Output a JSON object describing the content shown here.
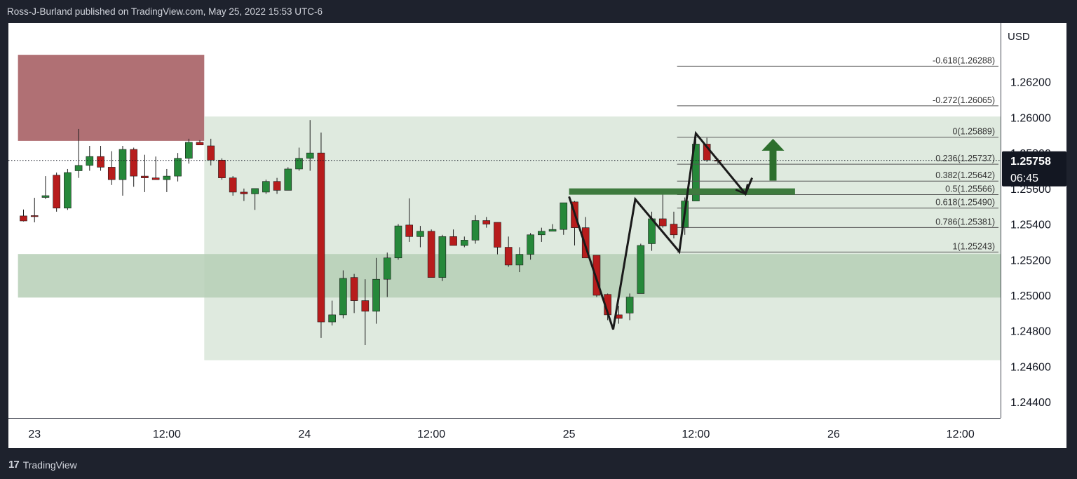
{
  "header": {
    "published_text": "Ross-J-Burland published on TradingView.com, May 25, 2022 15:53 UTC-6"
  },
  "footer": {
    "logo_glyph": "17",
    "brand": "TradingView",
    "logo_icon": "tradingview-logo-icon"
  },
  "colors": {
    "background": "#1e222d",
    "bull": "#26883a",
    "bear": "#b71c1c",
    "supply_zone": "#b07074",
    "demand_zone": "#b6cfb6",
    "range_zone": "#dfeadf",
    "price_tag": "#131722",
    "neckline": "#3e7b3e",
    "arrow": "#2d6f2d"
  },
  "chart_data": {
    "type": "candlestick",
    "currency_label": "USD",
    "y_ticks": [
      "1.26200",
      "1.26000",
      "1.25800",
      "1.25600",
      "1.25400",
      "1.25200",
      "1.25000",
      "1.24800",
      "1.24600",
      "1.24400"
    ],
    "y_range": [
      1.2431,
      1.2653
    ],
    "x_ticks": [
      {
        "label": "23",
        "bar": 1
      },
      {
        "label": "12:00",
        "bar": 13
      },
      {
        "label": "24",
        "bar": 25.5
      },
      {
        "label": "12:00",
        "bar": 37
      },
      {
        "label": "25",
        "bar": 49.5
      },
      {
        "label": "12:00",
        "bar": 61
      },
      {
        "label": "26",
        "bar": 73.5
      },
      {
        "label": "12:00",
        "bar": 85
      }
    ],
    "current_price": {
      "value": "1.25758",
      "countdown": "06:45",
      "level": 1.25758
    },
    "fibonacci": [
      {
        "label": "-0.618(1.26288)",
        "level": 1.26288
      },
      {
        "label": "-0.272(1.26065)",
        "level": 1.26065
      },
      {
        "label": "0(1.25889)",
        "level": 1.25889
      },
      {
        "label": "0.236(1.25737)",
        "level": 1.25737
      },
      {
        "label": "0.382(1.25642)",
        "level": 1.25642
      },
      {
        "label": "0.5(1.25566)",
        "level": 1.25566
      },
      {
        "label": "0.618(1.25490)",
        "level": 1.2549
      },
      {
        "label": "0.786(1.25381)",
        "level": 1.25381
      },
      {
        "label": "1(1.25243)",
        "level": 1.25243
      }
    ],
    "fib_start_bar": 59.3,
    "zones": [
      {
        "name": "supply",
        "bar_start": -0.5,
        "bar_end": 16.4,
        "y_top": 1.26352,
        "y_bottom": 1.25868
      },
      {
        "name": "range",
        "bar_start": 16.4,
        "bar_end": 91,
        "y_top": 1.26005,
        "y_bottom": 1.24635
      },
      {
        "name": "demand",
        "bar_start": -0.5,
        "bar_end": 91,
        "y_top": 1.25232,
        "y_bottom": 1.24987
      }
    ],
    "neckline": {
      "bar_start": 49.5,
      "bar_end": 70,
      "level": 1.25583
    },
    "pattern_line": [
      [
        49.5,
        1.25555
      ],
      [
        53.5,
        1.24808
      ],
      [
        55.5,
        1.2554
      ],
      [
        59.5,
        1.25245
      ],
      [
        61,
        1.2591
      ],
      [
        65.5,
        1.2557
      ],
      [
        66.1,
        1.2566
      ]
    ],
    "up_arrow": {
      "bar": 68,
      "from": 1.25645,
      "to": 1.2588
    },
    "candles": [
      [
        1.25446,
        1.25482,
        1.25418,
        1.25415
      ],
      [
        1.25448,
        1.25548,
        1.25444,
        1.2541
      ],
      [
        1.2555,
        1.2567,
        1.2556,
        1.25541
      ],
      [
        1.25675,
        1.2569,
        1.2549,
        1.2547
      ],
      [
        1.2549,
        1.2571,
        1.2569,
        1.2548
      ],
      [
        1.257,
        1.25935,
        1.2573,
        1.2566
      ],
      [
        1.2573,
        1.2584,
        1.2578,
        1.257
      ],
      [
        1.2578,
        1.2584,
        1.2572,
        1.257
      ],
      [
        1.2572,
        1.2581,
        1.2565,
        1.2562
      ],
      [
        1.2565,
        1.2584,
        1.2582,
        1.2556
      ],
      [
        1.2582,
        1.2583,
        1.2567,
        1.2561
      ],
      [
        1.2567,
        1.2579,
        1.2566,
        1.2558
      ],
      [
        1.2566,
        1.2578,
        1.2565,
        1.2565
      ],
      [
        1.2565,
        1.2571,
        1.2567,
        1.2558
      ],
      [
        1.2567,
        1.258,
        1.2577,
        1.2564
      ],
      [
        1.2577,
        1.2588,
        1.2586,
        1.2574
      ],
      [
        1.2586,
        1.25872,
        1.25845,
        1.25845
      ],
      [
        1.2584,
        1.2588,
        1.2576,
        1.2573
      ],
      [
        1.2576,
        1.2577,
        1.2566,
        1.2565
      ],
      [
        1.2566,
        1.2567,
        1.2558,
        1.2556
      ],
      [
        1.2558,
        1.256,
        1.2557,
        1.2553
      ],
      [
        1.2557,
        1.256,
        1.256,
        1.2548
      ],
      [
        1.2558,
        1.2565,
        1.2564,
        1.2557
      ],
      [
        1.2564,
        1.2566,
        1.2559,
        1.2557
      ],
      [
        1.2559,
        1.2572,
        1.2571,
        1.2559
      ],
      [
        1.2571,
        1.2583,
        1.2577,
        1.257
      ],
      [
        1.2577,
        1.25985,
        1.258,
        1.257
      ],
      [
        1.258,
        1.25915,
        1.2485,
        1.2476
      ],
      [
        1.2485,
        1.2497,
        1.2489,
        1.2483
      ],
      [
        1.2489,
        1.2514,
        1.25095,
        1.2487
      ],
      [
        1.251,
        1.2512,
        1.2497,
        1.249
      ],
      [
        1.2497,
        1.2509,
        1.2491,
        1.2472
      ],
      [
        1.2491,
        1.2521,
        1.2509,
        1.2484
      ],
      [
        1.2509,
        1.2524,
        1.2521,
        1.2499
      ],
      [
        1.2521,
        1.254,
        1.2539,
        1.252
      ],
      [
        1.25395,
        1.25545,
        1.2533,
        1.253
      ],
      [
        1.2533,
        1.2539,
        1.2536,
        1.2527
      ],
      [
        1.2536,
        1.2537,
        1.251,
        1.251
      ],
      [
        1.251,
        1.2534,
        1.2533,
        1.2508
      ],
      [
        1.2533,
        1.2537,
        1.2528,
        1.2528
      ],
      [
        1.2528,
        1.2533,
        1.2531,
        1.2527
      ],
      [
        1.2531,
        1.2545,
        1.2542,
        1.2529
      ],
      [
        1.2542,
        1.2544,
        1.254,
        1.2538
      ],
      [
        1.2541,
        1.2541,
        1.2527,
        1.2523
      ],
      [
        1.2527,
        1.2533,
        1.2517,
        1.2516
      ],
      [
        1.2517,
        1.2527,
        1.2523,
        1.2513
      ],
      [
        1.2523,
        1.2535,
        1.2534,
        1.252
      ],
      [
        1.2534,
        1.2538,
        1.2536,
        1.253
      ],
      [
        1.2536,
        1.254,
        1.2537,
        1.2536
      ],
      [
        1.2537,
        1.2552,
        1.2552,
        1.2534
      ],
      [
        1.25525,
        1.2553,
        1.2538,
        1.2528
      ],
      [
        1.2538,
        1.2544,
        1.2521,
        1.2521
      ],
      [
        1.25225,
        1.25225,
        1.25,
        1.2499
      ],
      [
        1.25005,
        1.2501,
        1.2489,
        1.2486
      ],
      [
        1.2489,
        1.2494,
        1.2487,
        1.2484
      ],
      [
        1.249,
        1.2501,
        1.2499,
        1.2486
      ],
      [
        1.2501,
        1.2529,
        1.2528,
        1.2502
      ],
      [
        1.2529,
        1.2547,
        1.2543,
        1.2525
      ],
      [
        1.2543,
        1.2559,
        1.2539,
        1.2538
      ],
      [
        1.254,
        1.2547,
        1.2534,
        1.2532
      ],
      [
        1.2538,
        1.2555,
        1.2553,
        1.2534
      ],
      [
        1.2553,
        1.2588,
        1.2585,
        1.2553
      ],
      [
        1.2585,
        1.25885,
        1.2576,
        1.2575
      ],
      [
        1.2576,
        1.2577,
        1.25758,
        1.2574
      ]
    ]
  }
}
